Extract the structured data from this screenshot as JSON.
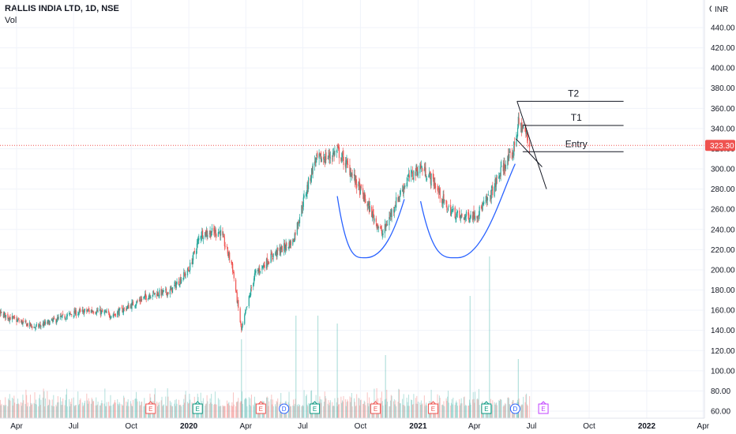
{
  "header": {
    "symbol_title": "RALLIS INDIA LTD, 1D, NSE",
    "volume_label": "Vol",
    "currency": "INR",
    "alert_icon": "bell-icon"
  },
  "colors": {
    "up": "#26a69a",
    "down": "#ef5350",
    "cup": "#2962ff",
    "price_tag": "#ef5350",
    "drawing": "#131722"
  },
  "chart_data": {
    "type": "candlestick",
    "title": "RALLIS INDIA LTD, 1D, NSE",
    "currency": "INR",
    "ylim": [
      50,
      460
    ],
    "y_ticks": [
      "440.00",
      "420.00",
      "400.00",
      "380.00",
      "360.00",
      "340.00",
      "320.00",
      "300.00",
      "280.00",
      "260.00",
      "240.00",
      "220.00",
      "200.00",
      "180.00",
      "160.00",
      "140.00",
      "120.00",
      "100.00",
      "80.00",
      "60.00"
    ],
    "x_ticks": [
      {
        "label": "Apr",
        "bold": false,
        "date": "2019-04-01"
      },
      {
        "label": "Jul",
        "bold": false,
        "date": "2019-07-01"
      },
      {
        "label": "Oct",
        "bold": false,
        "date": "2019-10-01"
      },
      {
        "label": "2020",
        "bold": true,
        "date": "2020-01-01"
      },
      {
        "label": "Apr",
        "bold": false,
        "date": "2020-04-01"
      },
      {
        "label": "Jul",
        "bold": false,
        "date": "2020-07-01"
      },
      {
        "label": "Oct",
        "bold": false,
        "date": "2020-10-01"
      },
      {
        "label": "2021",
        "bold": true,
        "date": "2021-01-01"
      },
      {
        "label": "Apr",
        "bold": false,
        "date": "2021-04-01"
      },
      {
        "label": "Jul",
        "bold": false,
        "date": "2021-07-01"
      },
      {
        "label": "Oct",
        "bold": false,
        "date": "2021-10-01"
      },
      {
        "label": "2022",
        "bold": true,
        "date": "2022-01-01"
      },
      {
        "label": "Apr",
        "bold": false,
        "date": "2022-04-01"
      }
    ],
    "last_price": 323.3,
    "last_price_label": "323.30",
    "price_path": [
      [
        "2019-02-01",
        162
      ],
      [
        "2019-03-01",
        158
      ],
      [
        "2019-04-01",
        150
      ],
      [
        "2019-05-01",
        143
      ],
      [
        "2019-06-01",
        150
      ],
      [
        "2019-07-01",
        157
      ],
      [
        "2019-08-01",
        160
      ],
      [
        "2019-09-01",
        155
      ],
      [
        "2019-10-01",
        165
      ],
      [
        "2019-11-01",
        176
      ],
      [
        "2019-12-01",
        178
      ],
      [
        "2020-01-01",
        200
      ],
      [
        "2020-01-20",
        236
      ],
      [
        "2020-02-20",
        238
      ],
      [
        "2020-03-10",
        205
      ],
      [
        "2020-03-25",
        140
      ],
      [
        "2020-04-15",
        195
      ],
      [
        "2020-05-15",
        215
      ],
      [
        "2020-06-15",
        228
      ],
      [
        "2020-07-05",
        275
      ],
      [
        "2020-07-20",
        308
      ],
      [
        "2020-08-15",
        313
      ],
      [
        "2020-08-25",
        318
      ],
      [
        "2020-09-15",
        298
      ],
      [
        "2020-10-01",
        278
      ],
      [
        "2020-10-20",
        255
      ],
      [
        "2020-11-05",
        235
      ],
      [
        "2020-11-25",
        265
      ],
      [
        "2020-12-15",
        290
      ],
      [
        "2021-01-05",
        302
      ],
      [
        "2021-01-25",
        288
      ],
      [
        "2021-02-15",
        262
      ],
      [
        "2021-03-10",
        252
      ],
      [
        "2021-04-05",
        255
      ],
      [
        "2021-04-25",
        272
      ],
      [
        "2021-05-15",
        300
      ],
      [
        "2021-06-01",
        315
      ],
      [
        "2021-06-10",
        345
      ],
      [
        "2021-06-20",
        338
      ],
      [
        "2021-06-28",
        323.3
      ]
    ],
    "volume_spikes": [
      [
        "2020-03-25",
        430
      ],
      [
        "2020-06-20",
        400
      ],
      [
        "2020-07-25",
        400
      ],
      [
        "2020-08-25",
        410
      ],
      [
        "2020-11-10",
        450
      ],
      [
        "2021-03-25",
        375
      ],
      [
        "2021-04-25",
        325
      ],
      [
        "2021-06-10",
        455
      ]
    ]
  },
  "events": [
    {
      "type": "E",
      "date": "2019-11-01",
      "color": "#ef5350"
    },
    {
      "type": "E",
      "date": "2020-01-15",
      "color": "#089981"
    },
    {
      "type": "E",
      "date": "2020-04-25",
      "color": "#ef5350"
    },
    {
      "type": "D",
      "date": "2020-06-01",
      "color": "#2962ff"
    },
    {
      "type": "E",
      "date": "2020-07-20",
      "color": "#089981"
    },
    {
      "type": "E",
      "date": "2020-10-25",
      "color": "#ef5350"
    },
    {
      "type": "E",
      "date": "2021-01-25",
      "color": "#ef5350"
    },
    {
      "type": "E",
      "date": "2021-04-20",
      "color": "#089981"
    },
    {
      "type": "D",
      "date": "2021-06-05",
      "color": "#2962ff"
    },
    {
      "type": "E",
      "date": "2021-07-20",
      "color": "#c040ff"
    }
  ],
  "annotations": {
    "cups": [
      {
        "start": [
          "2020-08-25",
          273
        ],
        "bottom": [
          "2020-10-10",
          212
        ],
        "end": [
          "2020-12-10",
          270
        ]
      },
      {
        "start": [
          "2021-01-05",
          268
        ],
        "bottom": [
          "2021-03-05",
          212
        ],
        "end": [
          "2021-06-05",
          305
        ]
      }
    ],
    "levels": [
      {
        "label": "T2",
        "y": 367,
        "x1": "2021-06-08",
        "x2": "2021-11-25"
      },
      {
        "label": "T1",
        "y": 343,
        "x1": "2021-06-17",
        "x2": "2021-11-25"
      },
      {
        "label": "Entry",
        "y": 317,
        "x1": "2021-06-17",
        "x2": "2021-11-25"
      }
    ],
    "channel_lines": [
      {
        "from": [
          "2021-06-08",
          367
        ],
        "to": [
          "2021-07-25",
          280
        ]
      },
      {
        "from": [
          "2021-06-06",
          330
        ],
        "to": [
          "2021-07-18",
          302
        ]
      }
    ]
  }
}
